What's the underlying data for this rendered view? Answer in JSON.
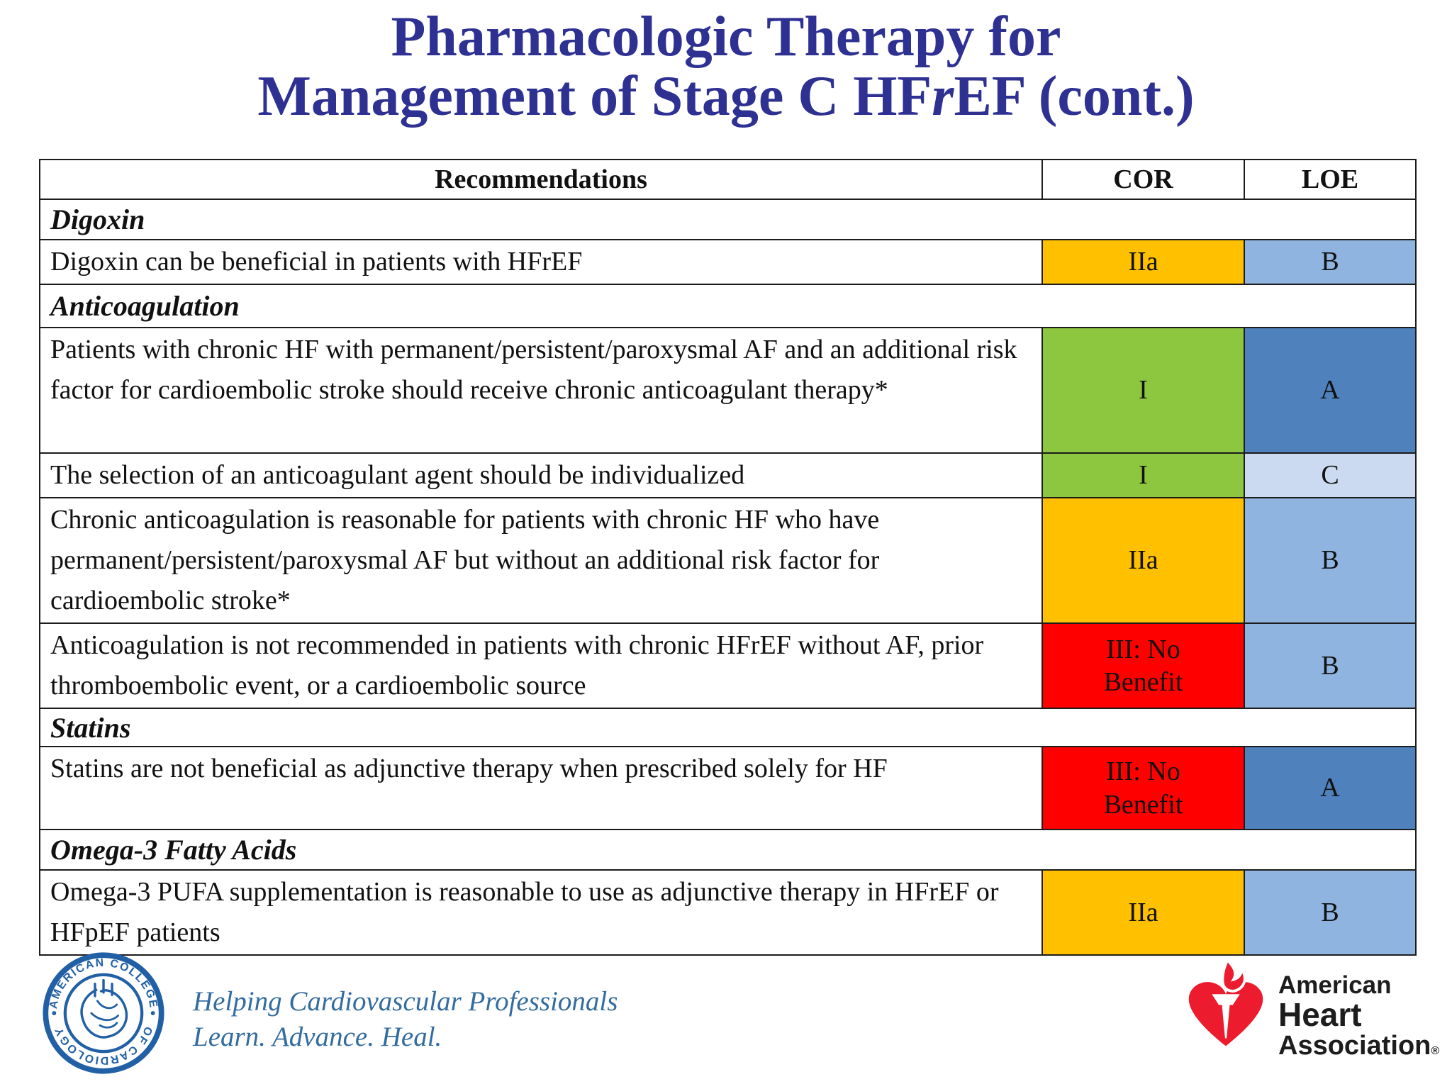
{
  "title": {
    "line1": "Pharmacologic Therapy for",
    "line2_pre": "Management of Stage C HF",
    "line2_italic": "r",
    "line2_post": "EF (cont.)"
  },
  "colors": {
    "title_blue": "#2E3192",
    "border": "#1c1c1c",
    "cor_I_green": "#8DC63F",
    "cor_IIa_orange": "#FFC000",
    "cor_III_red": "#FF0000",
    "loe_A_blue": "#4F81BD",
    "loe_B_blue": "#8FB4E0",
    "loe_C_blue": "#CBDAF1",
    "acc_blue": "#2160A5",
    "tagline_blue": "#336C9F",
    "aha_red": "#EC1B2E"
  },
  "table": {
    "columns": [
      "Recommendations",
      "COR",
      "LOE"
    ],
    "sections": [
      {
        "header": "Digoxin",
        "rows": [
          {
            "text": "Digoxin can be beneficial in patients with HFrEF",
            "cor": "IIa",
            "cor_color": "#FFC000",
            "loe": "B",
            "loe_color": "#8FB4E0"
          }
        ]
      },
      {
        "header": "Anticoagulation",
        "rows": [
          {
            "text": "Patients with chronic HF with permanent/persistent/paroxysmal AF and an additional risk factor for cardioembolic stroke should receive chronic anticoagulant therapy*",
            "cor": "I",
            "cor_color": "#8DC63F",
            "loe": "A",
            "loe_color": "#4F81BD"
          },
          {
            "text": "The selection of an anticoagulant agent should be individualized",
            "cor": "I",
            "cor_color": "#8DC63F",
            "loe": "C",
            "loe_color": "#CBDAF1"
          },
          {
            "text": "Chronic anticoagulation is reasonable for patients with chronic HF who have permanent/persistent/paroxysmal AF but without an additional risk factor for cardioembolic stroke*",
            "cor": "IIa",
            "cor_color": "#FFC000",
            "loe": "B",
            "loe_color": "#8FB4E0"
          },
          {
            "text": "Anticoagulation is not recommended in patients with chronic HFrEF without AF, prior thromboembolic event, or a cardioembolic source",
            "cor": "III: No Benefit",
            "cor_color": "#FF0000",
            "loe": "B",
            "loe_color": "#8FB4E0"
          }
        ]
      },
      {
        "header": "Statins",
        "rows": [
          {
            "text": "Statins are not beneficial as adjunctive therapy when prescribed solely for HF",
            "cor": "III: No Benefit",
            "cor_color": "#FF0000",
            "loe": "A",
            "loe_color": "#4F81BD"
          }
        ]
      },
      {
        "header": "Omega-3 Fatty Acids",
        "rows": [
          {
            "text": "Omega-3 PUFA supplementation is reasonable to use as adjunctive therapy in HFrEF or HFpEF patients",
            "cor": "IIa",
            "cor_color": "#FFC000",
            "loe": "B",
            "loe_color": "#8FB4E0"
          }
        ]
      }
    ]
  },
  "footer": {
    "acc": {
      "ring_top": "AMERICAN COLLEGE",
      "ring_bottom": "OF CARDIOLOGY",
      "tagline_line1": "Helping Cardiovascular Professionals",
      "tagline_line2": "Learn. Advance. Heal."
    },
    "aha": {
      "line1": "American",
      "line2": "Heart",
      "line3": "Association",
      "reg": "®"
    }
  }
}
